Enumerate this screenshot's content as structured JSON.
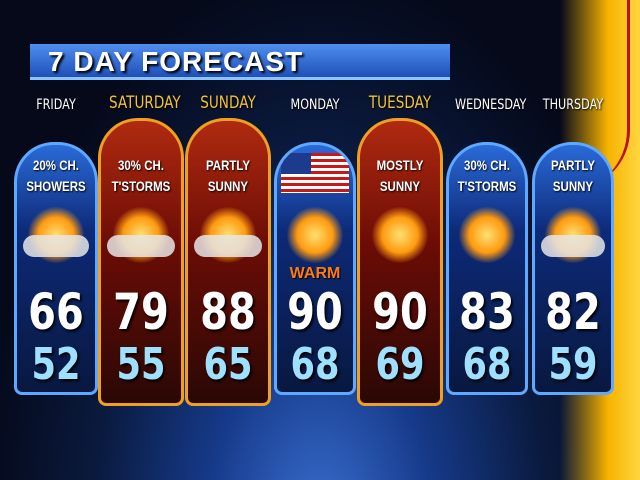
{
  "title": "7 DAY FORECAST",
  "days": [
    {
      "name": "FRIDAY",
      "highlight": false,
      "style": "blue",
      "condition": [
        "20% CH.",
        "SHOWERS"
      ],
      "icon": "sun-clouds-icon",
      "high": "66",
      "low": "52"
    },
    {
      "name": "SATURDAY",
      "highlight": true,
      "style": "red",
      "condition": [
        "30% CH.",
        "T'STORMS"
      ],
      "icon": "thunderstorm-icon",
      "high": "79",
      "low": "55"
    },
    {
      "name": "SUNDAY",
      "highlight": true,
      "style": "red",
      "condition": [
        "PARTLY",
        "SUNNY"
      ],
      "icon": "partly-sunny-icon",
      "high": "88",
      "low": "65"
    },
    {
      "name": "MONDAY",
      "highlight": false,
      "style": "blue",
      "condition": [],
      "icon": "american-flag-icon",
      "badge": "WARM",
      "high": "90",
      "low": "68"
    },
    {
      "name": "TUESDAY",
      "highlight": true,
      "style": "red",
      "condition": [
        "MOSTLY",
        "SUNNY"
      ],
      "icon": "mostly-sunny-icon",
      "high": "90",
      "low": "69"
    },
    {
      "name": "WEDNESDAY",
      "highlight": false,
      "style": "blue",
      "condition": [
        "30% CH.",
        "T'STORMS"
      ],
      "icon": "sun-icon",
      "high": "83",
      "low": "68"
    },
    {
      "name": "THURSDAY",
      "highlight": false,
      "style": "blue",
      "condition": [
        "PARTLY",
        "SUNNY"
      ],
      "icon": "partly-sunny-icon",
      "high": "82",
      "low": "59"
    }
  ],
  "colors": {
    "highlight_day": "#f2c230",
    "high_temp": "#ffffff",
    "low_temp": "#9fe0ff",
    "warm": "#ff7a10"
  }
}
